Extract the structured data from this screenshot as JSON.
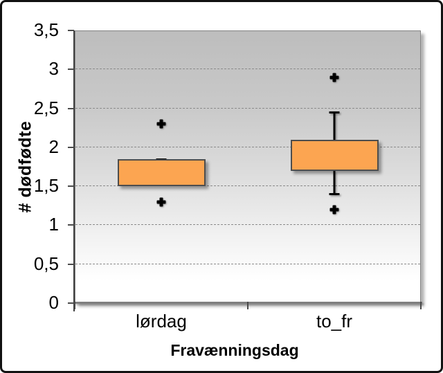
{
  "chart_data": {
    "type": "boxplot",
    "title": "",
    "xlabel": "Fravænningsdag",
    "ylabel": "# dødfødte",
    "categories": [
      "lørdag",
      "to_fr"
    ],
    "ylim": [
      0,
      3.5
    ],
    "y_ticks": [
      {
        "value": 3.5,
        "label": "3,5"
      },
      {
        "value": 3,
        "label": "3"
      },
      {
        "value": 2.5,
        "label": "2,5"
      },
      {
        "value": 2,
        "label": "2"
      },
      {
        "value": 1.5,
        "label": "1,5"
      },
      {
        "value": 1,
        "label": "1"
      },
      {
        "value": 0.5,
        "label": "0,5"
      },
      {
        "value": 0,
        "label": "0"
      }
    ],
    "gridline_values": [
      3,
      2.5,
      2,
      1.5,
      1,
      0.5
    ],
    "grid_style": "dashed",
    "legend": "none",
    "series": [
      {
        "name": "lørdag",
        "q1": 1.5,
        "q3": 1.85,
        "median": null,
        "whisker_low": null,
        "whisker_high": 1.85,
        "outliers": [
          1.3,
          2.3
        ]
      },
      {
        "name": "to_fr",
        "q1": 1.7,
        "q3": 2.1,
        "median": null,
        "whisker_low": 1.4,
        "whisker_high": 2.45,
        "outliers": [
          1.2,
          2.9
        ]
      }
    ],
    "colors": {
      "box_fill": "#FCA551",
      "box_border": "#4D4D4D",
      "whisker": "#000000",
      "outlier": "#000000",
      "gridline": "#8A8A8A",
      "plot_bg_top": "#BDBDBD",
      "plot_bg_bottom": "#FFFFFF",
      "axis_line": "#7F7F7F",
      "frame_border": "#111111",
      "text": "#000000"
    }
  }
}
